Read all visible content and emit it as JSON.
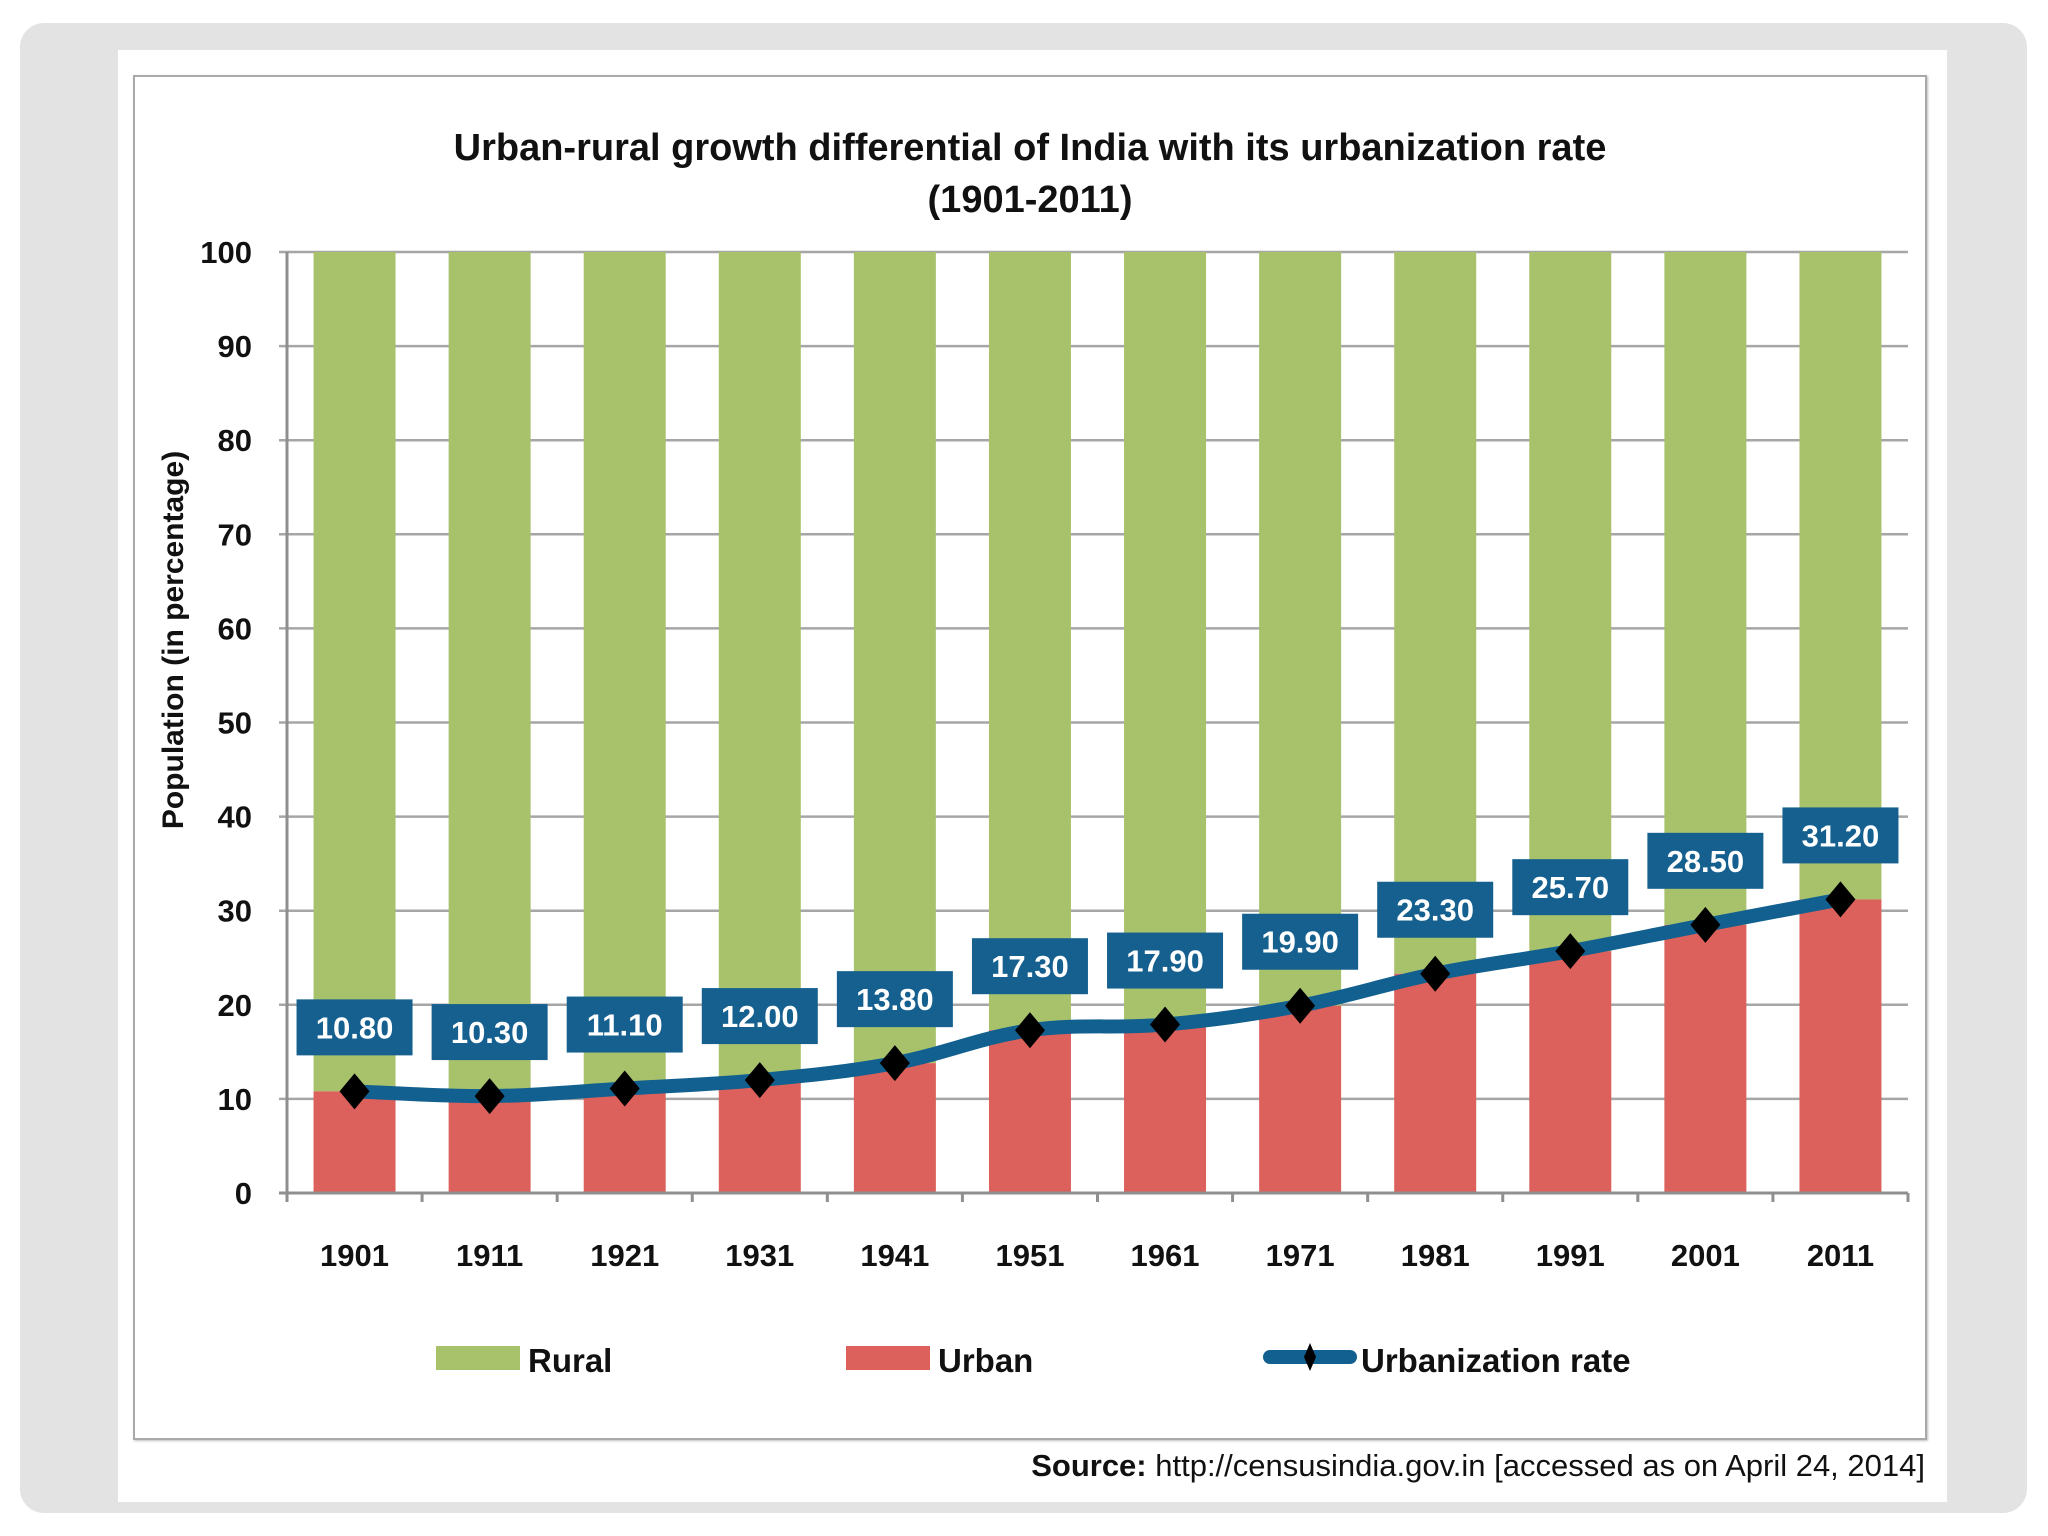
{
  "source": {
    "label": "Source:",
    "text": " http://censusindia.gov.in [accessed as on April 24, 2014]"
  },
  "colors": {
    "rural": "#a8c26c",
    "urban": "#dc605b",
    "rate_line": "#12608f",
    "label_box": "#15608f",
    "marker": "#000000",
    "grid": "#a6a6a6",
    "panel": "#e3e3e3"
  },
  "chart_data": {
    "type": "bar",
    "stacked": true,
    "title": "Urban-rural growth differential of India with its urbanization rate",
    "subtitle": "(1901-2011)",
    "xlabel": "",
    "ylabel": "Population (in percentage)",
    "ylim": [
      0,
      100
    ],
    "yticks": [
      0,
      10,
      20,
      30,
      40,
      50,
      60,
      70,
      80,
      90,
      100
    ],
    "grid": true,
    "legend_position": "bottom",
    "categories": [
      "1901",
      "1911",
      "1921",
      "1931",
      "1941",
      "1951",
      "1961",
      "1971",
      "1981",
      "1991",
      "2001",
      "2011"
    ],
    "series": [
      {
        "name": "Rural",
        "type": "bar",
        "values": [
          89.2,
          89.7,
          88.9,
          88.0,
          86.2,
          82.7,
          82.1,
          80.1,
          76.7,
          74.3,
          71.5,
          68.8
        ]
      },
      {
        "name": "Urban",
        "type": "bar",
        "values": [
          10.8,
          10.3,
          11.1,
          12.0,
          13.8,
          17.3,
          17.9,
          19.9,
          23.3,
          25.7,
          28.5,
          31.2
        ]
      },
      {
        "name": "Urbanization rate",
        "type": "line",
        "marker": "diamond",
        "values": [
          10.8,
          10.3,
          11.1,
          12.0,
          13.8,
          17.3,
          17.9,
          19.9,
          23.3,
          25.7,
          28.5,
          31.2
        ]
      }
    ],
    "data_labels": [
      "10.80",
      "10.30",
      "11.10",
      "12.00",
      "13.80",
      "17.30",
      "17.90",
      "19.90",
      "23.30",
      "25.70",
      "28.50",
      "31.20"
    ],
    "legend": [
      "Rural",
      "Urban",
      "Urbanization rate"
    ]
  }
}
